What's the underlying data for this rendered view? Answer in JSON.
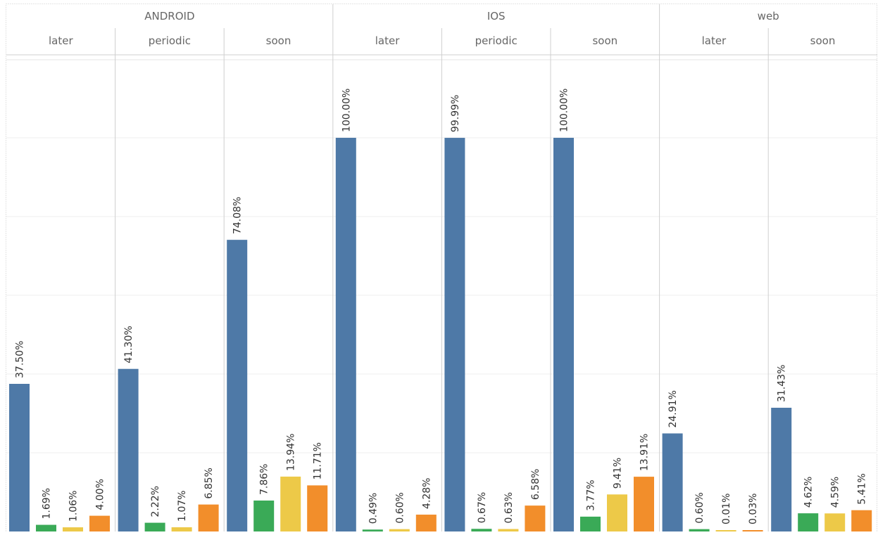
{
  "chart_data": {
    "type": "bar",
    "layout": "grouped-panels",
    "colors": [
      "#4E79A7",
      "#3AAA57",
      "#EDC948",
      "#F28E2B"
    ],
    "ylim": [
      0,
      100
    ],
    "grid": true,
    "groups": [
      {
        "name": "ANDROID",
        "panels": [
          {
            "label": "later",
            "values": [
              37.5,
              1.69,
              1.06,
              4.0
            ],
            "labels": [
              "37.50%",
              "1.69%",
              "1.06%",
              "4.00%"
            ]
          },
          {
            "label": "periodic",
            "values": [
              41.3,
              2.22,
              1.07,
              6.85
            ],
            "labels": [
              "41.30%",
              "2.22%",
              "1.07%",
              "6.85%"
            ]
          },
          {
            "label": "soon",
            "values": [
              74.08,
              7.86,
              13.94,
              11.71
            ],
            "labels": [
              "74.08%",
              "7.86%",
              "13.94%",
              "11.71%"
            ]
          }
        ]
      },
      {
        "name": "IOS",
        "panels": [
          {
            "label": "later",
            "values": [
              100.0,
              0.49,
              0.6,
              4.28
            ],
            "labels": [
              "100.00%",
              "0.49%",
              "0.60%",
              "4.28%"
            ]
          },
          {
            "label": "periodic",
            "values": [
              99.99,
              0.67,
              0.63,
              6.58
            ],
            "labels": [
              "99.99%",
              "0.67%",
              "0.63%",
              "6.58%"
            ]
          },
          {
            "label": "soon",
            "values": [
              100.0,
              3.77,
              9.41,
              13.91
            ],
            "labels": [
              "100.00%",
              "3.77%",
              "9.41%",
              "13.91%"
            ]
          }
        ]
      },
      {
        "name": "web",
        "panels": [
          {
            "label": "later",
            "values": [
              24.91,
              0.6,
              0.01,
              0.03
            ],
            "labels": [
              "24.91%",
              "0.60%",
              "0.01%",
              "0.03%"
            ]
          },
          {
            "label": "soon",
            "values": [
              31.43,
              4.62,
              4.59,
              5.41
            ],
            "labels": [
              "31.43%",
              "4.62%",
              "4.59%",
              "5.41%"
            ]
          }
        ]
      }
    ]
  }
}
